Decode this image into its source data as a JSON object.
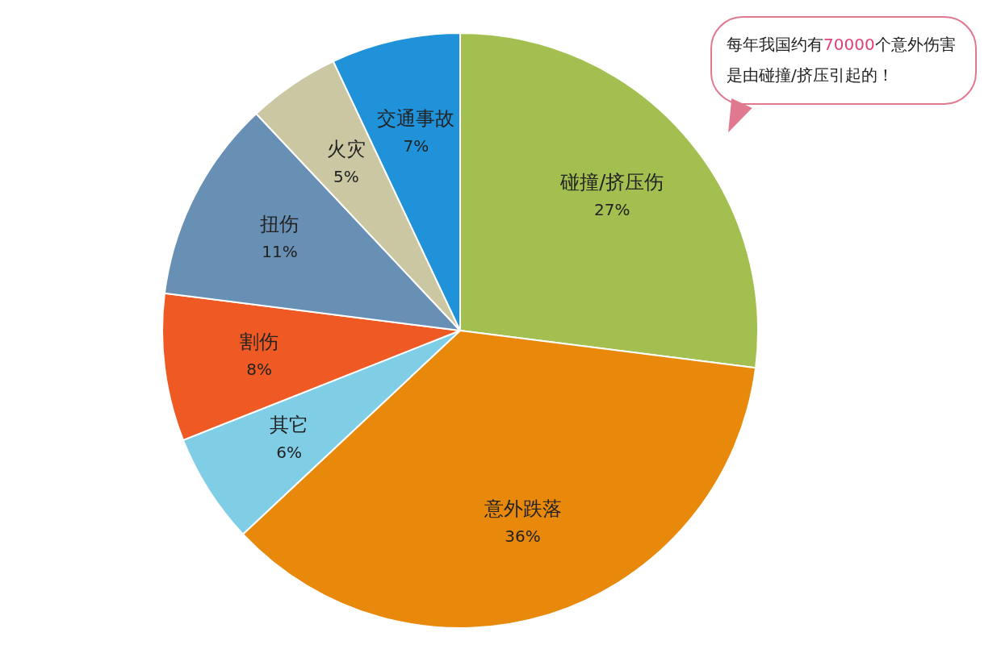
{
  "chart_data": {
    "type": "pie",
    "categories": [
      "碰撞/挤压伤",
      "意外跌落",
      "其它",
      "割伤",
      "扭伤",
      "火灾",
      "交通事故"
    ],
    "values": [
      27,
      36,
      6,
      8,
      11,
      5,
      7
    ],
    "value_labels": [
      "27%",
      "36%",
      "6%",
      "8%",
      "11%",
      "5%",
      "7%"
    ],
    "colors": [
      "#a3bf4f",
      "#e8890c",
      "#80cde6",
      "#ef5a24",
      "#6890b5",
      "#cac7a2",
      "#1f92d9"
    ],
    "annotations": [
      "每年我国约有70000个意外伤害是由碰撞/挤压引起的！"
    ],
    "legend": false
  }
}
